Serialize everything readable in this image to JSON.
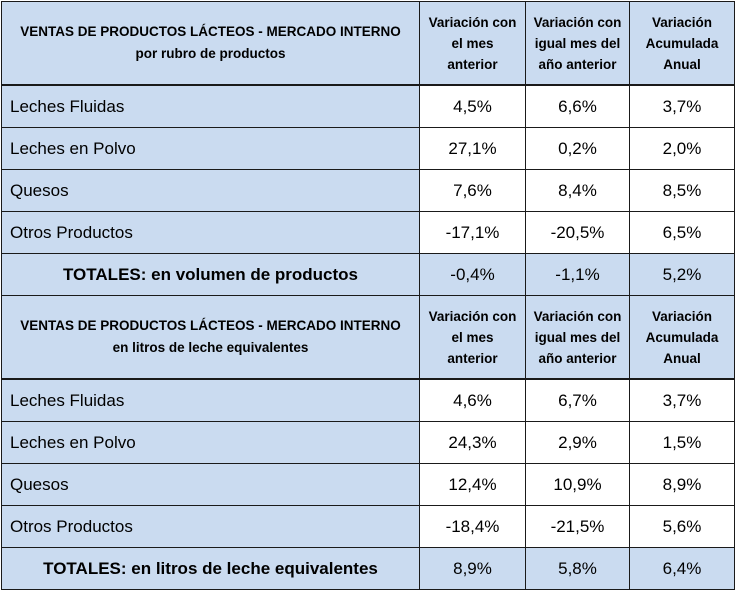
{
  "table": {
    "columns": [
      "Variación con el mes anterior",
      "Variación con igual mes del año anterior",
      "Variación Acumulada Anual"
    ],
    "column_lines": [
      [
        "Variación con",
        "el mes",
        "anterior"
      ],
      [
        "Variación con",
        "igual mes del",
        "año anterior"
      ],
      [
        "Variación",
        "Acumulada",
        "Anual"
      ]
    ],
    "sections": [
      {
        "title_line1": "VENTAS DE PRODUCTOS LÁCTEOS - MERCADO INTERNO",
        "title_line2": "por rubro de productos",
        "rows": [
          {
            "label": "Leches Fluidas",
            "values": [
              "4,5%",
              "6,6%",
              "3,7%"
            ]
          },
          {
            "label": "Leches en Polvo",
            "values": [
              "27,1%",
              "0,2%",
              "2,0%"
            ]
          },
          {
            "label": "Quesos",
            "values": [
              "7,6%",
              "8,4%",
              "8,5%"
            ]
          },
          {
            "label": "Otros Productos",
            "values": [
              "-17,1%",
              "-20,5%",
              "6,5%"
            ]
          }
        ],
        "total": {
          "label": "TOTALES: en volumen de productos",
          "values": [
            "-0,4%",
            "-1,1%",
            "5,2%"
          ]
        }
      },
      {
        "title_line1": "VENTAS DE PRODUCTOS LÁCTEOS - MERCADO INTERNO",
        "title_line2": "en litros de leche equivalentes",
        "rows": [
          {
            "label": "Leches Fluidas",
            "values": [
              "4,6%",
              "6,7%",
              "3,7%"
            ]
          },
          {
            "label": "Leches en Polvo",
            "values": [
              "24,3%",
              "2,9%",
              "1,5%"
            ]
          },
          {
            "label": "Quesos",
            "values": [
              "12,4%",
              "10,9%",
              "8,9%"
            ]
          },
          {
            "label": "Otros Productos",
            "values": [
              "-18,4%",
              "-21,5%",
              "5,6%"
            ]
          }
        ],
        "total": {
          "label": "TOTALES: en litros de leche equivalentes",
          "values": [
            "8,9%",
            "5,8%",
            "6,4%"
          ]
        }
      }
    ]
  }
}
